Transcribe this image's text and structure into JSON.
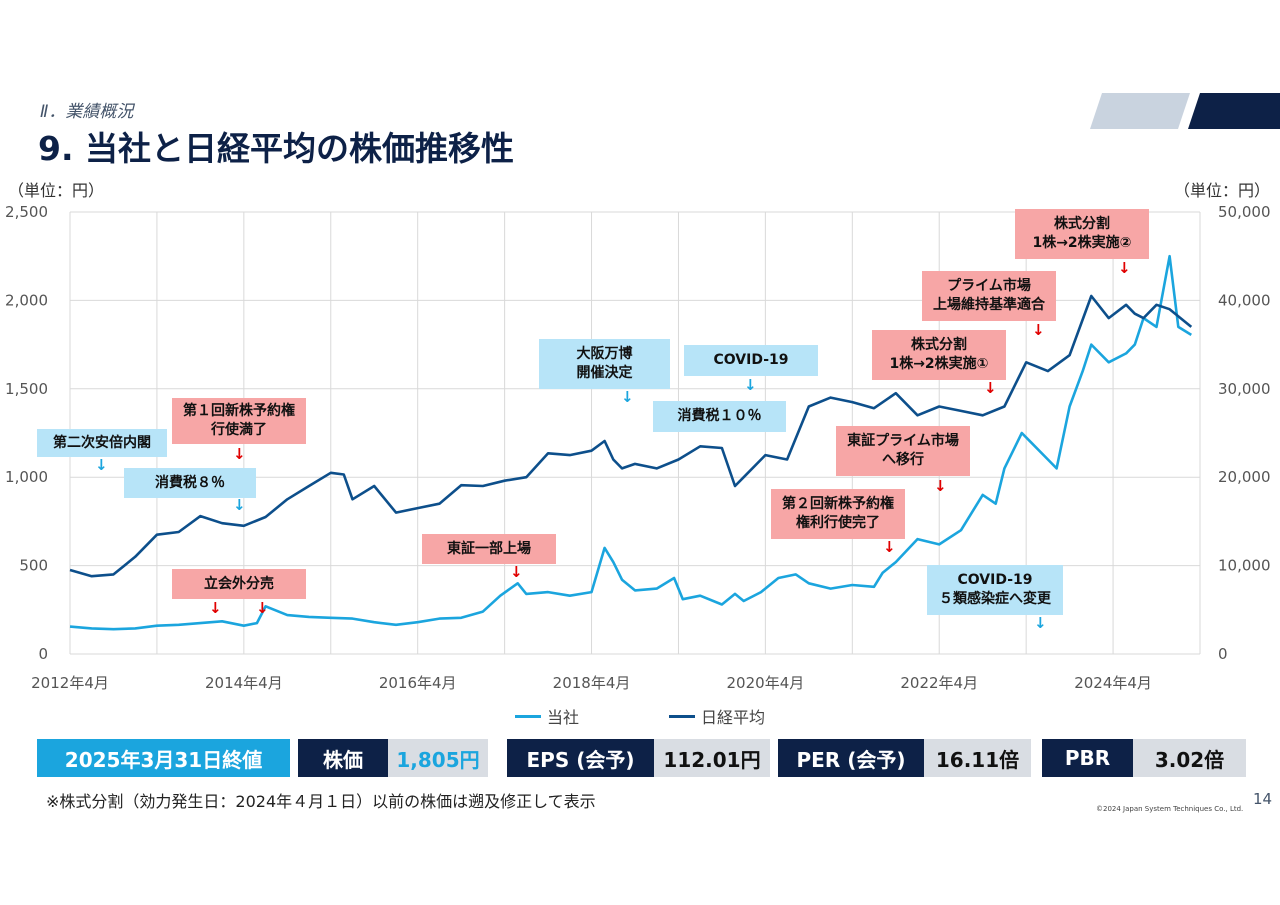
{
  "section_label": "Ⅱ．業績概況",
  "title": "9. 当社と日経平均の株価推移性",
  "unit_left": "（単位：円）",
  "unit_right": "（単位：円）",
  "colors": {
    "company": "#1ba5de",
    "nikkei": "#0d4f8b",
    "dark": "#0d2147",
    "pink": "#f7a6a6",
    "blue_box": "#b7e4f8"
  },
  "chart_data": {
    "type": "line",
    "title": "当社と日経平均の株価推移",
    "x_labels": [
      "2012年4月",
      "2014年4月",
      "2016年4月",
      "2018年4月",
      "2020年4月",
      "2022年4月",
      "2024年4月"
    ],
    "x_range": [
      2012.25,
      2025.25
    ],
    "y_left": {
      "range": [
        0,
        2500
      ],
      "ticks": [
        "0",
        "500",
        "1,000",
        "1,500",
        "2,000",
        "2,500"
      ]
    },
    "y_right": {
      "range": [
        0,
        50000
      ],
      "ticks": [
        "0",
        "10,000",
        "20,000",
        "30,000",
        "40,000",
        "50,000"
      ]
    },
    "series": [
      {
        "name": "当社",
        "axis": "left",
        "x": [
          2012.25,
          2012.5,
          2012.75,
          2013.0,
          2013.25,
          2013.5,
          2013.75,
          2014.0,
          2014.25,
          2014.4,
          2014.5,
          2014.75,
          2015.0,
          2015.25,
          2015.5,
          2015.75,
          2016.0,
          2016.25,
          2016.5,
          2016.75,
          2017.0,
          2017.2,
          2017.4,
          2017.5,
          2017.75,
          2018.0,
          2018.25,
          2018.4,
          2018.5,
          2018.6,
          2018.75,
          2019.0,
          2019.2,
          2019.3,
          2019.5,
          2019.75,
          2019.9,
          2020.0,
          2020.2,
          2020.4,
          2020.6,
          2020.75,
          2021.0,
          2021.25,
          2021.5,
          2021.6,
          2021.75,
          2022.0,
          2022.25,
          2022.5,
          2022.75,
          2022.9,
          2023.0,
          2023.2,
          2023.3,
          2023.5,
          2023.6,
          2023.75,
          2023.9,
          2024.0,
          2024.2,
          2024.4,
          2024.5,
          2024.6,
          2024.75,
          2024.9,
          2025.0,
          2025.15
        ],
        "values": [
          155,
          145,
          140,
          145,
          160,
          165,
          175,
          185,
          160,
          175,
          270,
          220,
          210,
          205,
          200,
          180,
          165,
          180,
          200,
          205,
          240,
          330,
          400,
          340,
          350,
          330,
          350,
          600,
          520,
          420,
          360,
          370,
          430,
          310,
          330,
          280,
          340,
          300,
          350,
          430,
          450,
          400,
          370,
          390,
          380,
          460,
          520,
          650,
          620,
          700,
          900,
          850,
          1050,
          1250,
          1200,
          1100,
          1050,
          1400,
          1600,
          1750,
          1650,
          1700,
          1750,
          1900,
          1850,
          2250,
          1850,
          1805
        ]
      },
      {
        "name": "日経平均",
        "axis": "right",
        "x": [
          2012.25,
          2012.5,
          2012.75,
          2013.0,
          2013.25,
          2013.5,
          2013.75,
          2014.0,
          2014.25,
          2014.5,
          2014.75,
          2015.0,
          2015.25,
          2015.4,
          2015.5,
          2015.75,
          2016.0,
          2016.25,
          2016.5,
          2016.75,
          2017.0,
          2017.25,
          2017.5,
          2017.75,
          2018.0,
          2018.25,
          2018.4,
          2018.5,
          2018.6,
          2018.75,
          2019.0,
          2019.25,
          2019.5,
          2019.75,
          2019.9,
          2020.0,
          2020.25,
          2020.5,
          2020.75,
          2021.0,
          2021.25,
          2021.5,
          2021.75,
          2022.0,
          2022.25,
          2022.5,
          2022.75,
          2023.0,
          2023.25,
          2023.5,
          2023.75,
          2024.0,
          2024.2,
          2024.4,
          2024.5,
          2024.6,
          2024.75,
          2024.9,
          2025.15
        ],
        "values": [
          9500,
          8800,
          9000,
          11000,
          13500,
          13800,
          15600,
          14800,
          14500,
          15500,
          17500,
          19000,
          20500,
          20300,
          17500,
          19000,
          16000,
          16500,
          17000,
          19100,
          19000,
          19600,
          20000,
          22700,
          22500,
          23000,
          24100,
          22000,
          21000,
          21500,
          21000,
          22000,
          23500,
          23300,
          19000,
          20000,
          22500,
          22000,
          28000,
          29000,
          28500,
          27800,
          29500,
          27000,
          28000,
          27500,
          27000,
          28000,
          33000,
          32000,
          33800,
          40500,
          38000,
          39500,
          38500,
          38000,
          39500,
          39000,
          37000
        ]
      }
    ]
  },
  "annotations": {
    "abe": "第二次安倍内閣",
    "tax8": "消費税８％",
    "warrant1": "第１回新株予約権\n行使満了",
    "secondary": "立会外分売",
    "tse1": "東証一部上場",
    "expo": "大阪万博\n開催決定",
    "covid": "COVID-19",
    "tax10": "消費税１０％",
    "warrant2": "第２回新株予約権\n権利行使完了",
    "prime_move": "東証プライム市場\nへ移行",
    "split1": "株式分割\n1株→2株実施①",
    "prime_keep": "プライム市場\n上場維持基準適合",
    "split2": "株式分割\n1株→2株実施②",
    "covid5": "COVID-19\n５類感染症へ変更"
  },
  "legend": {
    "company": "当社",
    "nikkei": "日経平均"
  },
  "stats": {
    "date": "2025年3月31日終値",
    "price_label": "株価",
    "price_value": "1,805円",
    "eps_label": "EPS (会予)",
    "eps_value": "112.01円",
    "per_label": "PER (会予)",
    "per_value": "16.11倍",
    "pbr_label": "PBR",
    "pbr_value": "3.02倍"
  },
  "note": "※株式分割（効力発生日：2024年４月１日）以前の株価は遡及修正して表示",
  "copyright": "©2024 Japan System Techniques Co., Ltd.",
  "page_number": "14"
}
